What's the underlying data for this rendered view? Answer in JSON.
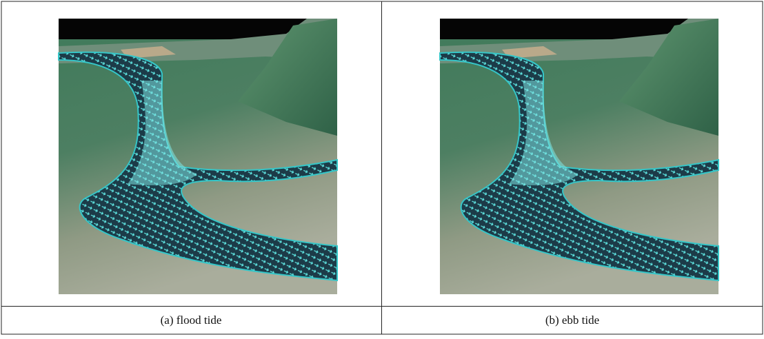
{
  "panels": [
    {
      "caption": "(a) flood tide"
    },
    {
      "caption": "(b) ebb tide"
    }
  ]
}
